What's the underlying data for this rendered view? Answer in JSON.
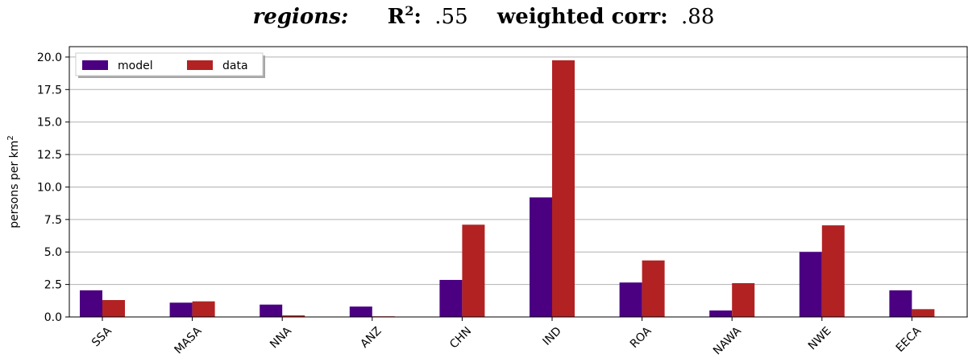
{
  "chart_data": {
    "type": "bar",
    "title": {
      "prefix": "regions:",
      "r2_label": "R",
      "r2_sup": "2",
      "r2_colon": ":",
      "r2_value": ".55",
      "corr_label": "weighted corr:",
      "corr_value": ".88"
    },
    "xlabel": "",
    "ylabel": "persons per km",
    "ylabel_sup": "2",
    "ylim": [
      0,
      20.8
    ],
    "yticks": [
      "0.0",
      "2.5",
      "5.0",
      "7.5",
      "10.0",
      "12.5",
      "15.0",
      "17.5",
      "20.0"
    ],
    "grid": "horizontal",
    "legend_position": "top-left",
    "categories": [
      "SSA",
      "MASA",
      "NNA",
      "ANZ",
      "CHN",
      "IND",
      "ROA",
      "NAWA",
      "NWE",
      "EECA"
    ],
    "series": [
      {
        "name": "model",
        "color": "#4b0082",
        "values": [
          2.05,
          1.1,
          0.95,
          0.8,
          2.85,
          9.2,
          2.65,
          0.5,
          5.0,
          2.05
        ]
      },
      {
        "name": "data",
        "color": "#b22222",
        "values": [
          1.3,
          1.2,
          0.12,
          0.05,
          7.1,
          19.75,
          4.35,
          2.6,
          7.05,
          0.6
        ]
      }
    ]
  }
}
